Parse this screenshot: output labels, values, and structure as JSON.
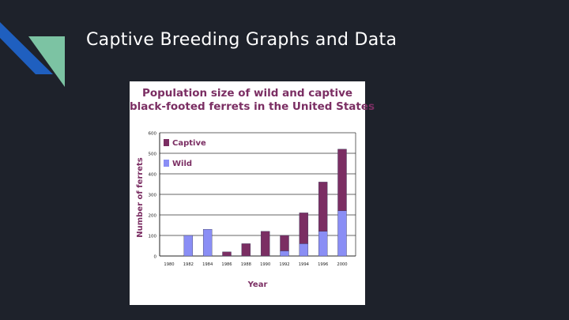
{
  "slide": {
    "title": "Captive Breeding Graphs and Data",
    "colors": {
      "background": "#1e222b",
      "deco_blue": "#1f5fbf",
      "deco_green": "#7cc3a3",
      "title_text": "#ffffff"
    }
  },
  "chart_data": {
    "type": "bar",
    "stacked": true,
    "title_lines": [
      "Population size of wild and captive",
      "black-footed ferrets in the United States"
    ],
    "xlabel": "Year",
    "ylabel": "Number of ferrets",
    "categories": [
      "1980",
      "1982",
      "1984",
      "1986",
      "1988",
      "1990",
      "1992",
      "1994",
      "1996",
      "2000"
    ],
    "yticks": [
      0,
      100,
      200,
      300,
      400,
      500,
      600
    ],
    "ylim": [
      0,
      600
    ],
    "grid": "horizontal",
    "legend_position": "top-left",
    "series": [
      {
        "name": "Wild",
        "color": "#8a8ef5",
        "values": [
          0,
          100,
          130,
          0,
          0,
          0,
          25,
          60,
          120,
          220
        ]
      },
      {
        "name": "Captive",
        "color": "#7b2e63",
        "values": [
          0,
          0,
          0,
          20,
          60,
          120,
          75,
          150,
          240,
          300
        ]
      }
    ]
  }
}
